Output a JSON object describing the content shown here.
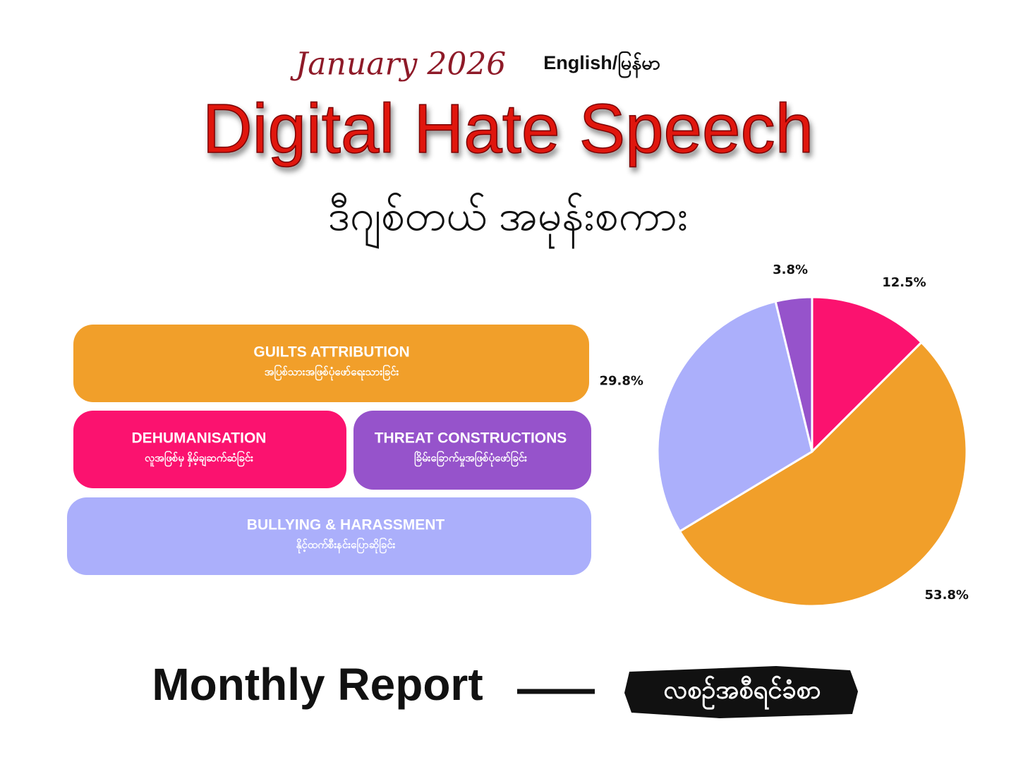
{
  "header": {
    "date": "January 2026",
    "language": "English/မြန်မာ",
    "title": "Digital Hate Speech",
    "title_my": "ဒီဂျစ်တယ် အမုန်းစကား"
  },
  "chart_data": {
    "type": "pie",
    "categories": [
      "DEHUMANISATION",
      "GUILTS ATTRIBUTION",
      "BULLYING & HARASSMENT",
      "THREAT CONSTRUCTIONS"
    ],
    "category_subtitles": [
      "လူအဖြစ်မှ နှိမ့်ချဆက်ဆံခြင်း",
      "အပြစ်သားအဖြစ်ပုံဖော်ရေးသားခြင်း",
      "နိုင့်ထက်စီးနင်းပြောဆိုခြင်း",
      "ခြိမ်းခြောက်မှုအဖြစ်ပုံဖော်ခြင်း"
    ],
    "values": [
      12.5,
      53.8,
      29.8,
      3.8
    ],
    "value_labels": [
      "12.5%",
      "53.8%",
      "29.8%",
      "3.8%"
    ],
    "colors": [
      "#fb126f",
      "#f19f2a",
      "#abaffb",
      "#9653cb"
    ]
  },
  "footer": {
    "report": "Monthly Report",
    "report_my": "လစဉ်အစီရင်ခံစာ"
  }
}
